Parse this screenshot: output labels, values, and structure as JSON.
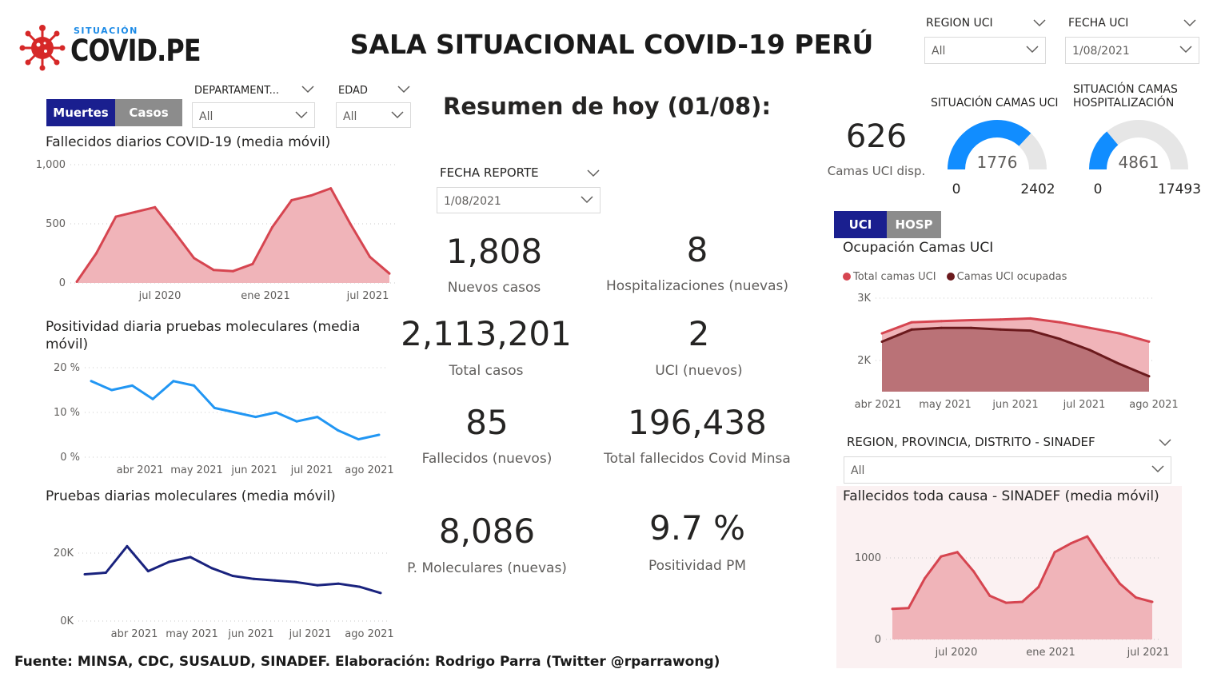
{
  "header": {
    "logo_small": "SITUACIÓN",
    "logo_big": "COVID.PE",
    "title": "SALA SITUACIONAL COVID-19 PERÚ"
  },
  "top_slicers": {
    "region_uci": {
      "label": "REGION UCI",
      "value": "All"
    },
    "fecha_uci": {
      "label": "FECHA UCI",
      "value": "1/08/2021"
    }
  },
  "left_slicers": {
    "departamento": {
      "label": "DEPARTAMENT...",
      "value": "All"
    },
    "edad": {
      "label": "EDAD",
      "value": "All"
    }
  },
  "left_toggle": {
    "option1": "Muertes",
    "option2": "Casos",
    "active": "Muertes"
  },
  "summary": {
    "title": "Resumen de hoy (01/08):",
    "fecha_reporte": {
      "label": "FECHA REPORTE",
      "value": "1/08/2021"
    },
    "kpis": [
      {
        "value": "1,808",
        "label": "Nuevos casos"
      },
      {
        "value": "8",
        "label": "Hospitalizaciones (nuevas)"
      },
      {
        "value": "2,113,201",
        "label": "Total casos"
      },
      {
        "value": "2",
        "label": "UCI (nuevos)"
      },
      {
        "value": "85",
        "label": "Fallecidos  (nuevos)"
      },
      {
        "value": "196,438",
        "label": "Total fallecidos Covid Minsa"
      },
      {
        "value": "8,086",
        "label": "P. Moleculares (nuevas)"
      },
      {
        "value": "9.7 %",
        "label": "Positividad PM"
      }
    ]
  },
  "camas": {
    "uci_disp_value": "626",
    "uci_disp_label": "Camas UCI disp.",
    "gauge_uci": {
      "title": "SITUACIÓN CAMAS UCI",
      "value": "1776",
      "min": "0",
      "max": "2402",
      "fraction": 0.739
    },
    "gauge_hosp": {
      "title": "SITUACIÓN CAMAS HOSPITALIZACIÓN",
      "value": "4861",
      "min": "0",
      "max": "17493",
      "fraction": 0.278
    }
  },
  "right_toggle": {
    "option1": "UCI",
    "option2": "HOSP",
    "active": "UCI"
  },
  "sinadef_slicer": {
    "label": "REGION, PROVINCIA, DISTRITO - SINADEF",
    "value": "All"
  },
  "colors": {
    "red_line": "#d64550",
    "red_fill": "#f0b4b9",
    "blue_line": "#2196f3",
    "navy_line": "#1a237e",
    "dark_red": "#6b1a1d",
    "toggle_active": "#1a1f8f",
    "toggle_inactive": "#8c8c8c",
    "gauge_fill": "#118dff",
    "gauge_bg": "#e6e6e6"
  },
  "chart_data": [
    {
      "id": "fallecidos",
      "type": "area",
      "title": "Fallecidos diarios COVID-19 (media móvil)",
      "y_ticks": [
        "1,000",
        "500",
        "0"
      ],
      "x_ticks": [
        "jul 2020",
        "ene 2021",
        "jul 2021"
      ],
      "ylim": [
        0,
        1000
      ],
      "x": [
        "2020-04",
        "2020-05",
        "2020-06",
        "2020-07",
        "2020-08",
        "2020-09",
        "2020-10",
        "2020-11",
        "2020-12",
        "2021-01",
        "2021-02",
        "2021-03",
        "2021-04",
        "2021-05",
        "2021-06",
        "2021-07",
        "2021-08"
      ],
      "values": [
        10,
        250,
        560,
        600,
        640,
        430,
        210,
        110,
        100,
        160,
        470,
        700,
        740,
        800,
        500,
        220,
        80
      ]
    },
    {
      "id": "positividad",
      "type": "line",
      "title": "Positividad diaria pruebas moleculares (media móvil)",
      "y_ticks": [
        "20 %",
        "10 %",
        "0 %"
      ],
      "x_ticks": [
        "abr 2021",
        "may 2021",
        "jun 2021",
        "jul 2021",
        "ago 2021"
      ],
      "ylim": [
        0,
        20
      ],
      "x": [
        "2021-03-15",
        "2021-03-25",
        "2021-04-05",
        "2021-04-15",
        "2021-04-25",
        "2021-05-05",
        "2021-05-15",
        "2021-05-25",
        "2021-06-05",
        "2021-06-15",
        "2021-06-25",
        "2021-07-05",
        "2021-07-15",
        "2021-07-25",
        "2021-08-01"
      ],
      "values": [
        17,
        15,
        16,
        13,
        17,
        16,
        11,
        10,
        9,
        10,
        8,
        9,
        6,
        4,
        5
      ]
    },
    {
      "id": "pruebas",
      "type": "line",
      "title": "Pruebas diarias moleculares (media móvil)",
      "y_ticks": [
        "20K",
        "0K"
      ],
      "x_ticks": [
        "abr 2021",
        "may 2021",
        "jun 2021",
        "jul 2021",
        "ago 2021"
      ],
      "ylim": [
        0,
        30000
      ],
      "x": [
        "2021-03-15",
        "2021-03-25",
        "2021-04-05",
        "2021-04-15",
        "2021-04-25",
        "2021-05-05",
        "2021-05-15",
        "2021-05-25",
        "2021-06-05",
        "2021-06-15",
        "2021-06-25",
        "2021-07-05",
        "2021-07-15",
        "2021-07-25",
        "2021-08-01"
      ],
      "values": [
        15000,
        15500,
        24000,
        16000,
        19000,
        20500,
        17000,
        14500,
        13500,
        13000,
        12500,
        11500,
        12000,
        11000,
        9000
      ]
    },
    {
      "id": "ocupacion_uci",
      "type": "area",
      "title": "Ocupación Camas UCI",
      "y_ticks": [
        "3K",
        "2K"
      ],
      "x_ticks": [
        "abr 2021",
        "may 2021",
        "jun 2021",
        "jul 2021",
        "ago 2021"
      ],
      "ylim": [
        1500,
        3200
      ],
      "x": [
        "2021-03-20",
        "2021-04-01",
        "2021-04-15",
        "2021-05-01",
        "2021-05-15",
        "2021-06-01",
        "2021-06-15",
        "2021-07-01",
        "2021-07-15",
        "2021-08-01"
      ],
      "series": [
        {
          "name": "Total camas UCI",
          "values": [
            2550,
            2750,
            2770,
            2790,
            2800,
            2820,
            2750,
            2650,
            2550,
            2402
          ]
        },
        {
          "name": "Camas UCI ocupadas",
          "values": [
            2400,
            2620,
            2650,
            2650,
            2620,
            2600,
            2450,
            2250,
            2000,
            1776
          ]
        }
      ]
    },
    {
      "id": "sinadef",
      "type": "area",
      "title": "Fallecidos toda causa - SINADEF (media móvil)",
      "y_ticks": [
        "1000",
        "0"
      ],
      "x_ticks": [
        "jul 2020",
        "ene 2021",
        "jul 2021"
      ],
      "ylim": [
        0,
        1300
      ],
      "x": [
        "2020-04",
        "2020-05",
        "2020-06",
        "2020-07",
        "2020-08",
        "2020-09",
        "2020-10",
        "2020-11",
        "2020-12",
        "2021-01",
        "2021-02",
        "2021-03",
        "2021-04",
        "2021-05",
        "2021-06",
        "2021-07",
        "2021-08"
      ],
      "values": [
        350,
        360,
        700,
        950,
        1000,
        780,
        500,
        420,
        430,
        600,
        1000,
        1100,
        1180,
        900,
        640,
        480,
        430
      ]
    }
  ],
  "footer": "Fuente: MINSA, CDC, SUSALUD, SINADEF. Elaboración: Rodrigo Parra (Twitter @rparrawong)"
}
